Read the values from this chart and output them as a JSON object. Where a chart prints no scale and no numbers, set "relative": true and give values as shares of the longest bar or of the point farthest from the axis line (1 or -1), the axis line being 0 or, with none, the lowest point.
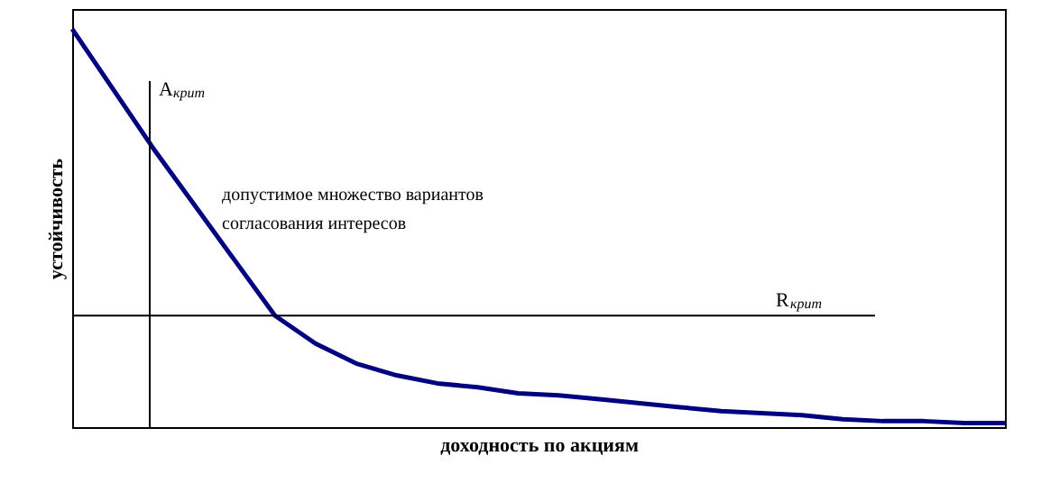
{
  "chart_data": {
    "type": "line",
    "relative": true,
    "xlabel": "доходность по акциям",
    "ylabel": "устойчивость",
    "categories": [
      null,
      null,
      null,
      null,
      null,
      null,
      null,
      null,
      null,
      null,
      null,
      null,
      null,
      null,
      null,
      null,
      null,
      null,
      null,
      null,
      null,
      null,
      null,
      null
    ],
    "series": [
      {
        "color": "#000080",
        "values": [
          1,
          0.85,
          0.7,
          0.56,
          0.42,
          0.28,
          0.21,
          0.16,
          0.13,
          0.11,
          0.1,
          0.085,
          0.08,
          0.07,
          0.06,
          0.05,
          0.04,
          0.035,
          0.03,
          0.02,
          0.015,
          0.015,
          0.01,
          0.01
        ]
      }
    ],
    "ref_lines": [
      {
        "axis": "y",
        "value": 0.28,
        "label": "R$_{крит}$",
        "color": "#000000"
      }
    ],
    "annotations": [
      "A$_{крит}$",
      "допустимое множество вариантов\nсогласования интересов"
    ],
    "marker": "none",
    "line_style": "solid"
  }
}
